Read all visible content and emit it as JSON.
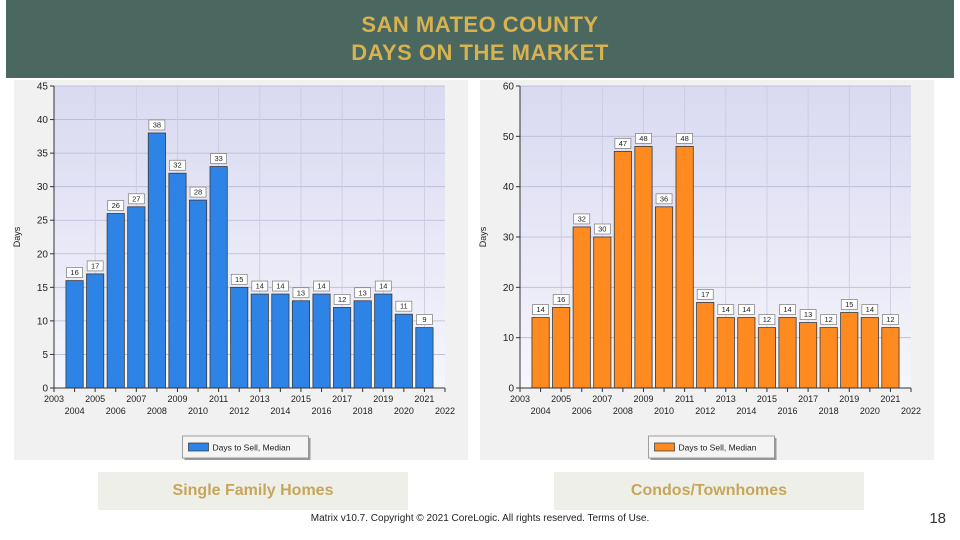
{
  "header": {
    "line1": "SAN MATEO COUNTY",
    "line2": "DAYS ON THE MARKET"
  },
  "captions": {
    "left": "Single Family Homes",
    "right": "Condos/Townhomes"
  },
  "footer": {
    "copyright": "Matrix v10.7. Copyright © 2021 CoreLogic. All rights reserved. Terms of Use."
  },
  "page_number": "18",
  "colors": {
    "header_bg": "#4a6760",
    "header_text": "#d7b24f",
    "sfh_bar": "#2e83e6",
    "condo_bar": "#ff8a1f",
    "plot_bg": "#e3e3f6"
  },
  "chart_data": [
    {
      "type": "bar",
      "title": "",
      "xlabel": "",
      "ylabel": "Days",
      "ylim": [
        0,
        45
      ],
      "yticks": [
        0,
        5,
        10,
        15,
        20,
        25,
        30,
        35,
        40,
        45
      ],
      "xlim": [
        2003,
        2022
      ],
      "xticks_upper": [
        "2003",
        "2005",
        "2007",
        "2009",
        "2011",
        "2013",
        "2015",
        "2017",
        "2019",
        "2021"
      ],
      "xticks_lower": [
        "2004",
        "2006",
        "2008",
        "2010",
        "2012",
        "2014",
        "2016",
        "2018",
        "2020",
        "2022"
      ],
      "categories": [
        2004,
        2005,
        2006,
        2007,
        2008,
        2009,
        2010,
        2011,
        2012,
        2013,
        2014,
        2015,
        2016,
        2017,
        2018,
        2019,
        2020,
        2021
      ],
      "series": [
        {
          "name": "Days to Sell, Median",
          "values": [
            16,
            17,
            26,
            27,
            38,
            32,
            28,
            33,
            15,
            14,
            14,
            13,
            14,
            12,
            13,
            14,
            11,
            9
          ]
        }
      ],
      "grid": true,
      "legend": "bottom-center",
      "color": "#2e83e6"
    },
    {
      "type": "bar",
      "title": "",
      "xlabel": "",
      "ylabel": "Days",
      "ylim": [
        0,
        60
      ],
      "yticks": [
        0,
        10,
        20,
        30,
        40,
        50,
        60
      ],
      "xlim": [
        2003,
        2022
      ],
      "xticks_upper": [
        "2003",
        "2005",
        "2007",
        "2009",
        "2011",
        "2013",
        "2015",
        "2017",
        "2019",
        "2021"
      ],
      "xticks_lower": [
        "2004",
        "2006",
        "2008",
        "2010",
        "2012",
        "2014",
        "2016",
        "2018",
        "2020",
        "2022"
      ],
      "categories": [
        2004,
        2005,
        2006,
        2007,
        2008,
        2009,
        2010,
        2011,
        2012,
        2013,
        2014,
        2015,
        2016,
        2017,
        2018,
        2019,
        2020,
        2021
      ],
      "series": [
        {
          "name": "Days to Sell, Median",
          "values": [
            14,
            16,
            32,
            30,
            47,
            48,
            36,
            48,
            17,
            14,
            14,
            12,
            14,
            13,
            12,
            15,
            14,
            12
          ]
        }
      ],
      "grid": true,
      "legend": "bottom-center",
      "color": "#ff8a1f"
    }
  ]
}
